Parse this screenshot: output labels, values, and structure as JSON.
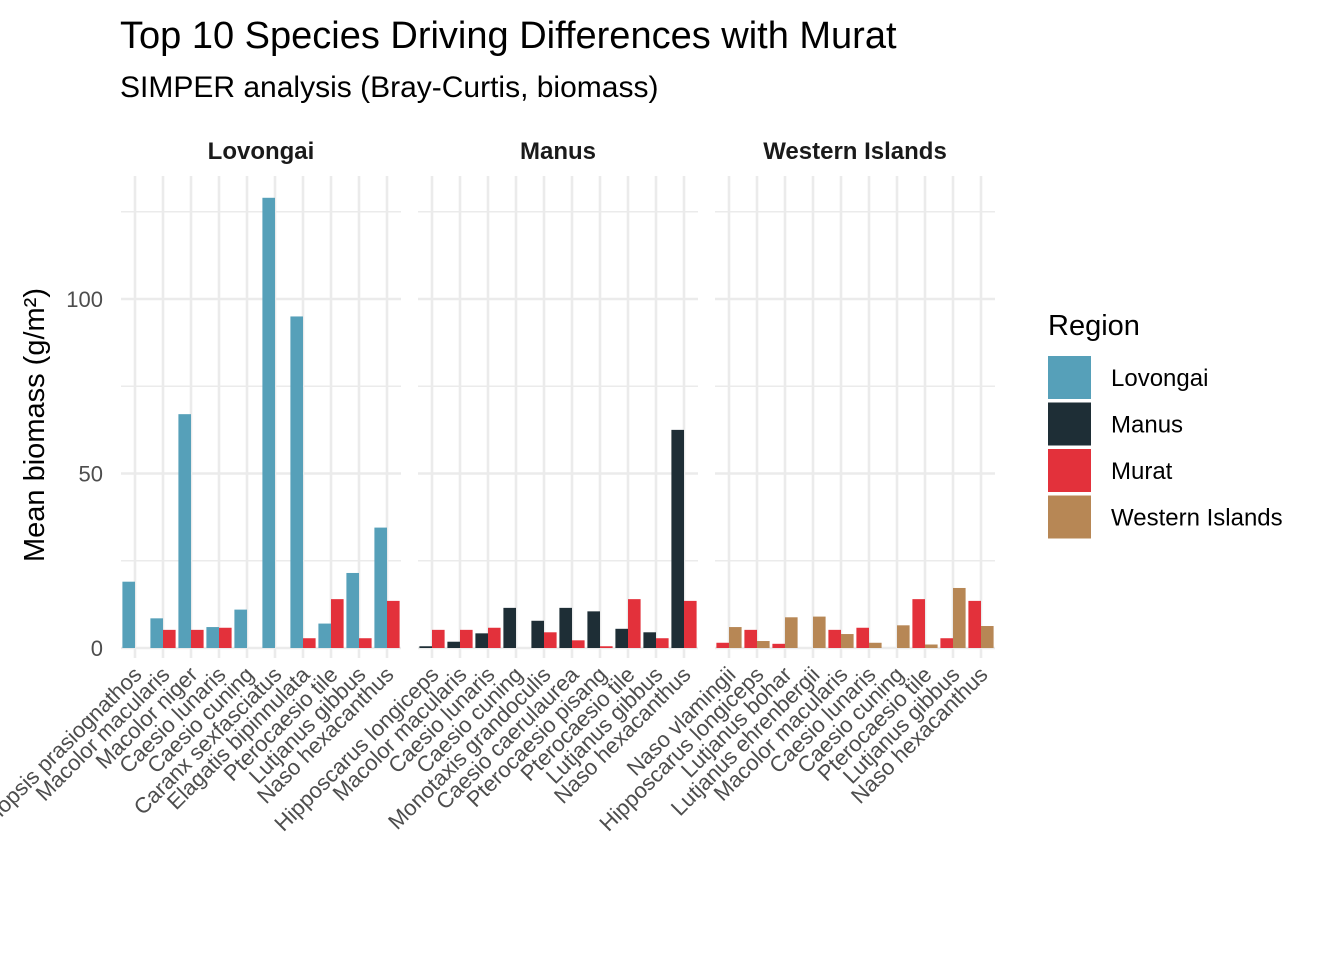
{
  "chart_data": {
    "type": "bar",
    "title": "Top 10 Species Driving Differences with Murat",
    "subtitle": "SIMPER analysis (Bray-Curtis, biomass)",
    "ylabel": "Mean biomass (g/m²)",
    "xlabel": "",
    "ylim": [
      0,
      135
    ],
    "yticks": [
      0,
      50,
      100
    ],
    "grid": true,
    "legend": {
      "title": "Region",
      "position": "right",
      "entries": [
        {
          "name": "Lovongai",
          "color": "#56A0B9"
        },
        {
          "name": "Manus",
          "color": "#1E2E36"
        },
        {
          "name": "Murat",
          "color": "#E3313B"
        },
        {
          "name": "Western Islands",
          "color": "#B78755"
        }
      ]
    },
    "panels": [
      {
        "name": "Lovongai",
        "categories": [
          "Scolopsis prasiognathos",
          "Macolor macularis",
          "Macolor niger",
          "Caesio lunaris",
          "Caesio cuning",
          "Caranx sexfasciatus",
          "Elagatis bipinnulata",
          "Pterocaesio tile",
          "Lutjanus gibbus",
          "Naso hexacanthus"
        ],
        "series": [
          {
            "name": "Lovongai",
            "values": [
              19,
              8.5,
              67,
              6,
              11,
              129,
              95,
              7,
              21.5,
              34.5
            ]
          },
          {
            "name": "Murat",
            "values": [
              0,
              5.2,
              5.2,
              5.8,
              0,
              0,
              2.8,
              14,
              2.8,
              13.5
            ]
          }
        ]
      },
      {
        "name": "Manus",
        "categories": [
          "Hipposcarus longiceps",
          "Macolor macularis",
          "Caesio lunaris",
          "Caesio cuning",
          "Monotaxis grandoculis",
          "Caesio caerulaurea",
          "Pterocaesio pisang",
          "Pterocaesio tile",
          "Lutjanus gibbus",
          "Naso hexacanthus"
        ],
        "series": [
          {
            "name": "Manus",
            "values": [
              0.5,
              1.8,
              4.2,
              11.5,
              7.8,
              11.5,
              10.5,
              5.5,
              4.5,
              62.5
            ]
          },
          {
            "name": "Murat",
            "values": [
              5.2,
              5.2,
              5.8,
              0,
              4.5,
              2.2,
              0.5,
              14,
              2.8,
              13.5
            ]
          }
        ]
      },
      {
        "name": "Western Islands",
        "categories": [
          "Naso vlamingii",
          "Hipposcarus longiceps",
          "Lutjanus bohar",
          "Lutjanus ehrenbergii",
          "Macolor macularis",
          "Caesio lunaris",
          "Caesio cuning",
          "Pterocaesio tile",
          "Lutjanus gibbus",
          "Naso hexacanthus"
        ],
        "series": [
          {
            "name": "Murat",
            "values": [
              1.5,
              5.2,
              1.2,
              0,
              5.2,
              5.8,
              0,
              14,
              2.8,
              13.5
            ]
          },
          {
            "name": "Western Islands",
            "values": [
              6,
              2,
              8.8,
              9,
              4,
              1.5,
              6.5,
              1,
              17.2,
              6.3
            ]
          }
        ]
      }
    ]
  }
}
